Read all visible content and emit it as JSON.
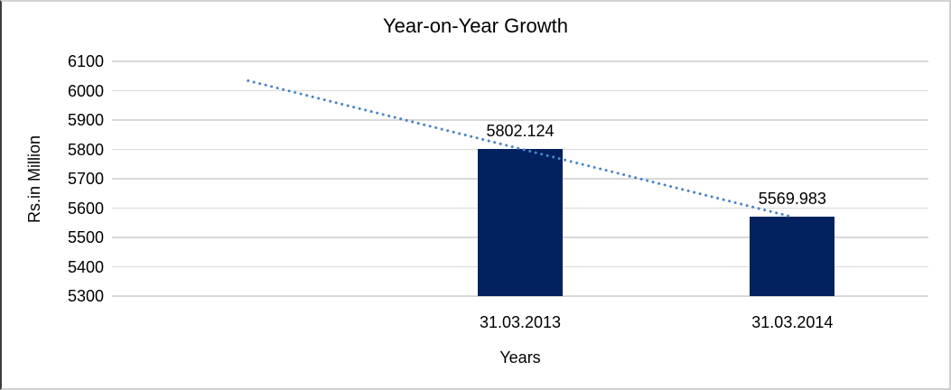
{
  "chart_data": {
    "type": "bar",
    "title": "Year-on-Year Growth",
    "categories": [
      "31.03.2013",
      "31.03.2014"
    ],
    "values": [
      5802.124,
      5569.983
    ],
    "data_labels": [
      "5802.124",
      "5569.983"
    ],
    "xlabel": "Years",
    "ylabel": "Rs.in Million",
    "ylim": [
      5300,
      6100
    ],
    "yticks": [
      6100,
      6000,
      5900,
      5800,
      5700,
      5600,
      5500,
      5400,
      5300
    ],
    "grid": true,
    "legend": false,
    "bar_color": "#02215e",
    "gridline_color": "#d9d9d9",
    "text_color": "#000000",
    "trendline": {
      "type": "linear",
      "style": "dotted",
      "color": "#4a86c8",
      "extends_back_periods": 1
    }
  }
}
